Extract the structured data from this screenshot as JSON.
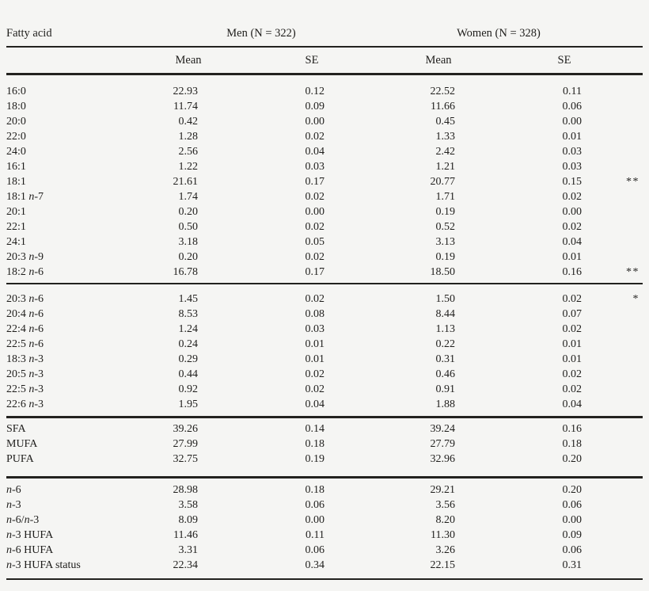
{
  "page": {
    "background": "#f5f5f3",
    "text_color": "#1f1e1c",
    "rule_color": "#23221f"
  },
  "table": {
    "header": {
      "fatty_acid": "Fatty acid",
      "men_group": "Men (N = 322)",
      "women_group": "Women (N = 328)",
      "subheaders": [
        "Mean",
        "SE",
        "Mean",
        "SE"
      ]
    },
    "blocks": [
      {
        "rows": [
          {
            "label": "16:0",
            "men_mean": "22.93",
            "men_se": "0.12",
            "women_mean": "22.52",
            "women_se": "0.11",
            "sig": ""
          },
          {
            "label": "18:0",
            "men_mean": "11.74",
            "men_se": "0.09",
            "women_mean": "11.66",
            "women_se": "0.06",
            "sig": ""
          },
          {
            "label": "20:0",
            "men_mean": "0.42",
            "men_se": "0.00",
            "women_mean": "0.45",
            "women_se": "0.00",
            "sig": ""
          },
          {
            "label": "22:0",
            "men_mean": "1.28",
            "men_se": "0.02",
            "women_mean": "1.33",
            "women_se": "0.01",
            "sig": ""
          },
          {
            "label": "24:0",
            "men_mean": "2.56",
            "men_se": "0.04",
            "women_mean": "2.42",
            "women_se": "0.03",
            "sig": ""
          },
          {
            "label": "16:1",
            "men_mean": "1.22",
            "men_se": "0.03",
            "women_mean": "1.21",
            "women_se": "0.03",
            "sig": ""
          },
          {
            "label": "18:1",
            "men_mean": "21.61",
            "men_se": "0.17",
            "women_mean": "20.77",
            "women_se": "0.15",
            "sig": "**"
          },
          {
            "label": "18:1 n-7",
            "men_mean": "1.74",
            "men_se": "0.02",
            "women_mean": "1.71",
            "women_se": "0.02",
            "sig": ""
          },
          {
            "label": "20:1",
            "men_mean": "0.20",
            "men_se": "0.00",
            "women_mean": "0.19",
            "women_se": "0.00",
            "sig": ""
          },
          {
            "label": "22:1",
            "men_mean": "0.50",
            "men_se": "0.02",
            "women_mean": "0.52",
            "women_se": "0.02",
            "sig": ""
          },
          {
            "label": "24:1",
            "men_mean": "3.18",
            "men_se": "0.05",
            "women_mean": "3.13",
            "women_se": "0.04",
            "sig": ""
          },
          {
            "label": "20:3 n-9",
            "men_mean": "0.20",
            "men_se": "0.02",
            "women_mean": "0.19",
            "women_se": "0.01",
            "sig": ""
          },
          {
            "label": "18:2 n-6",
            "men_mean": "16.78",
            "men_se": "0.17",
            "women_mean": "18.50",
            "women_se": "0.16",
            "sig": "**"
          }
        ]
      },
      {
        "rows": [
          {
            "label": "20:3 n-6",
            "men_mean": "1.45",
            "men_se": "0.02",
            "women_mean": "1.50",
            "women_se": "0.02",
            "sig": "*"
          },
          {
            "label": "20:4 n-6",
            "men_mean": "8.53",
            "men_se": "0.08",
            "women_mean": "8.44",
            "women_se": "0.07",
            "sig": ""
          },
          {
            "label": "22:4 n-6",
            "men_mean": "1.24",
            "men_se": "0.03",
            "women_mean": "1.13",
            "women_se": "0.02",
            "sig": ""
          },
          {
            "label": "22:5 n-6",
            "men_mean": "0.24",
            "men_se": "0.01",
            "women_mean": "0.22",
            "women_se": "0.01",
            "sig": ""
          },
          {
            "label": "18:3 n-3",
            "men_mean": "0.29",
            "men_se": "0.01",
            "women_mean": "0.31",
            "women_se": "0.01",
            "sig": ""
          },
          {
            "label": "20:5 n-3",
            "men_mean": "0.44",
            "men_se": "0.02",
            "women_mean": "0.46",
            "women_se": "0.02",
            "sig": ""
          },
          {
            "label": "22:5 n-3",
            "men_mean": "0.92",
            "men_se": "0.02",
            "women_mean": "0.91",
            "women_se": "0.02",
            "sig": ""
          },
          {
            "label": "22:6 n-3",
            "men_mean": "1.95",
            "men_se": "0.04",
            "women_mean": "1.88",
            "women_se": "0.04",
            "sig": ""
          }
        ]
      },
      {
        "rows": [
          {
            "label": "SFA",
            "men_mean": "39.26",
            "men_se": "0.14",
            "women_mean": "39.24",
            "women_se": "0.16",
            "sig": ""
          },
          {
            "label": "MUFA",
            "men_mean": "27.99",
            "men_se": "0.18",
            "women_mean": "27.79",
            "women_se": "0.18",
            "sig": ""
          },
          {
            "label": "PUFA",
            "men_mean": "32.75",
            "men_se": "0.19",
            "women_mean": "32.96",
            "women_se": "0.20",
            "sig": ""
          }
        ]
      },
      {
        "rows": [
          {
            "label": "n-6",
            "men_mean": "28.98",
            "men_se": "0.18",
            "women_mean": "29.21",
            "women_se": "0.20",
            "sig": ""
          },
          {
            "label": "n-3",
            "men_mean": "3.58",
            "men_se": "0.06",
            "women_mean": "3.56",
            "women_se": "0.06",
            "sig": ""
          },
          {
            "label": "n-6/n-3",
            "men_mean": "8.09",
            "men_se": "0.00",
            "women_mean": "8.20",
            "women_se": "0.00",
            "sig": ""
          },
          {
            "label": "n-3 HUFA",
            "men_mean": "11.46",
            "men_se": "0.11",
            "women_mean": "11.30",
            "women_se": "0.09",
            "sig": ""
          },
          {
            "label": "n-6 HUFA",
            "men_mean": "3.31",
            "men_se": "0.06",
            "women_mean": "3.26",
            "women_se": "0.06",
            "sig": ""
          },
          {
            "label": "n-3 HUFA status",
            "men_mean": "22.34",
            "men_se": "0.34",
            "women_mean": "22.15",
            "women_se": "0.31",
            "sig": ""
          }
        ]
      }
    ]
  }
}
